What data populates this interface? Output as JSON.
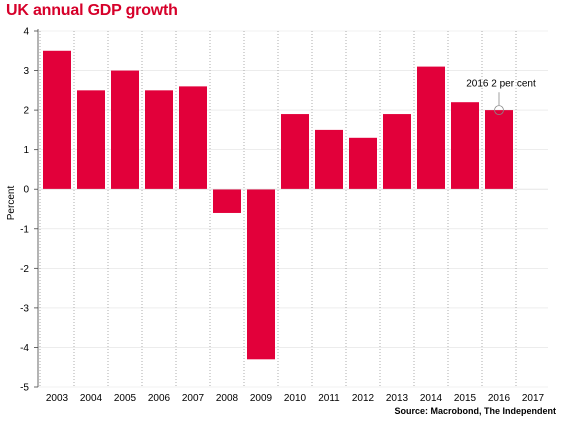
{
  "title": "UK annual GDP growth",
  "source": "Source: Macrobond, The Independent",
  "colors": {
    "bar": "#e2003a",
    "title": "#d6002a",
    "grid": "#999999"
  },
  "chart_data": {
    "type": "bar",
    "title": "UK annual GDP growth",
    "ylabel": "Percent",
    "xlabel": "",
    "categories": [
      "2003",
      "2004",
      "2005",
      "2006",
      "2007",
      "2008",
      "2009",
      "2010",
      "2011",
      "2012",
      "2013",
      "2014",
      "2015",
      "2016",
      "2017"
    ],
    "values": [
      3.5,
      2.5,
      3.0,
      2.5,
      2.6,
      -0.6,
      -4.3,
      1.9,
      1.5,
      1.3,
      1.9,
      3.1,
      2.2,
      2.0,
      null
    ],
    "ylim": [
      -5,
      4
    ],
    "yticks": [
      4,
      3,
      2,
      1,
      0,
      -1,
      -2,
      -3,
      -4,
      -5
    ],
    "grid": true,
    "annotations": [
      {
        "text": "2016 2 per cent",
        "category": "2016",
        "value": 2.0
      }
    ]
  }
}
